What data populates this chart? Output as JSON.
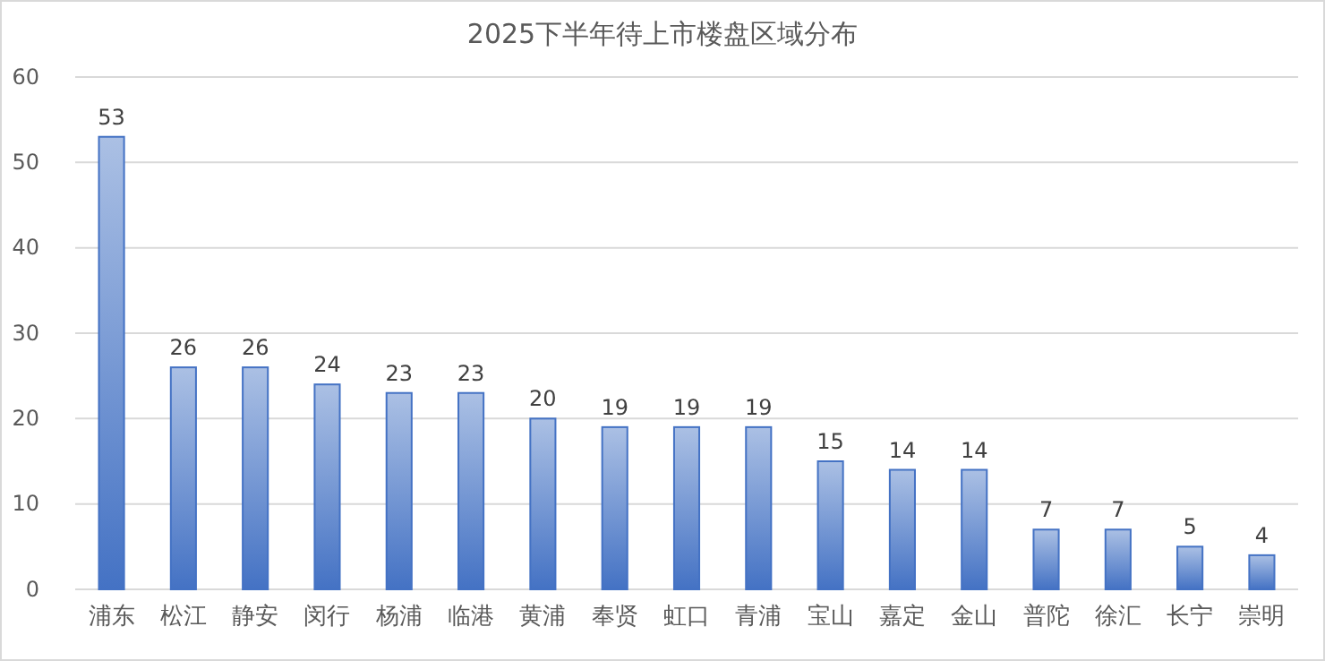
{
  "chart_data": {
    "type": "bar",
    "title": "2025下半年待上市楼盘区域分布",
    "categories": [
      "浦东",
      "松江",
      "静安",
      "闵行",
      "杨浦",
      "临港",
      "黄浦",
      "奉贤",
      "虹口",
      "青浦",
      "宝山",
      "嘉定",
      "金山",
      "普陀",
      "徐汇",
      "长宁",
      "崇明"
    ],
    "values": [
      53,
      26,
      26,
      24,
      23,
      23,
      20,
      19,
      19,
      19,
      15,
      14,
      14,
      7,
      7,
      5,
      4
    ],
    "color": "#4472c4",
    "ylim": [
      0,
      60
    ],
    "yticks": [
      0,
      10,
      20,
      30,
      40,
      50,
      60
    ],
    "grid": "y",
    "data_labels": true
  }
}
